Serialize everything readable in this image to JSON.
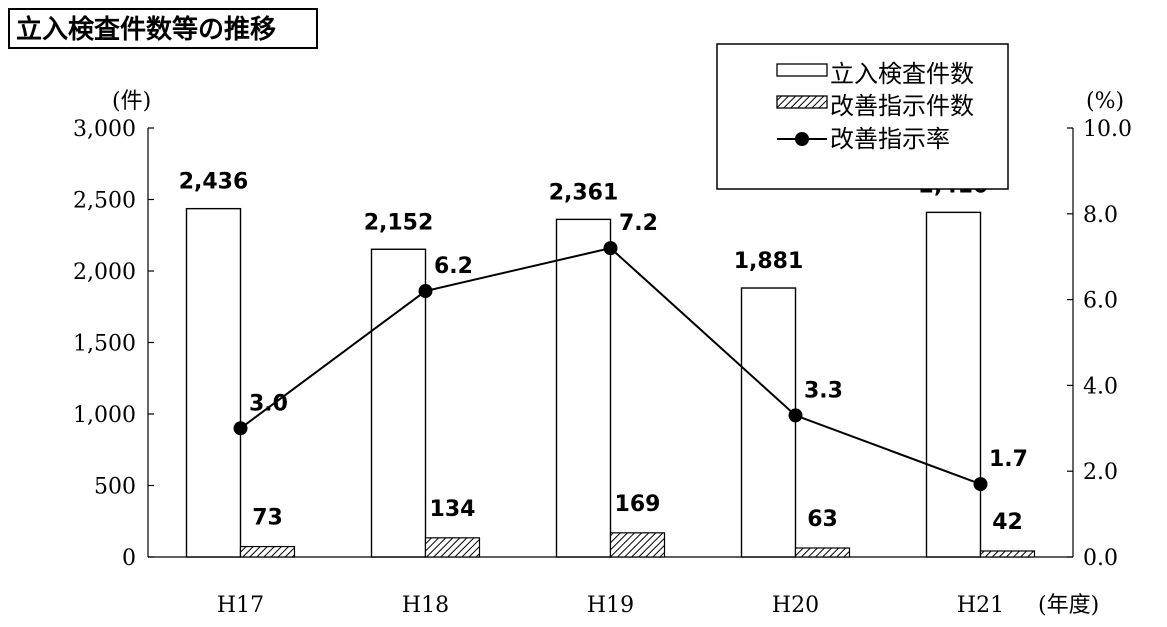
{
  "chart_data": {
    "type": "bar",
    "title": "立入検査件数等の推移",
    "categories": [
      "H17",
      "H18",
      "H19",
      "H20",
      "H21"
    ],
    "xlabel": "(年度)",
    "ylabel": "(件)",
    "ylabel_right": "(%)",
    "ylim": [
      0,
      3000
    ],
    "ylim_right": [
      0,
      10
    ],
    "yticks": [
      "0",
      "500",
      "1,000",
      "1,500",
      "2,000",
      "2,500",
      "3,000"
    ],
    "yticks_right": [
      "0.0",
      "2.0",
      "4.0",
      "6.0",
      "8.0",
      "10.0"
    ],
    "grid": false,
    "legend_position": "top-right",
    "series": [
      {
        "name": "立入検査件数",
        "type": "bar",
        "axis": "left",
        "values": [
          2436,
          2152,
          2361,
          1881,
          2410
        ],
        "labels": [
          "2,436",
          "2,152",
          "2,361",
          "1,881",
          "2,410"
        ]
      },
      {
        "name": "改善指示件数",
        "type": "bar",
        "axis": "left",
        "pattern": "hatched",
        "values": [
          73,
          134,
          169,
          63,
          42
        ],
        "labels": [
          "73",
          "134",
          "169",
          "63",
          "42"
        ]
      },
      {
        "name": "改善指示率",
        "type": "line",
        "axis": "right",
        "marker": "circle",
        "values": [
          3.0,
          6.2,
          7.2,
          3.3,
          1.7
        ],
        "labels": [
          "3.0",
          "6.2",
          "7.2",
          "3.3",
          "1.7"
        ]
      }
    ]
  }
}
